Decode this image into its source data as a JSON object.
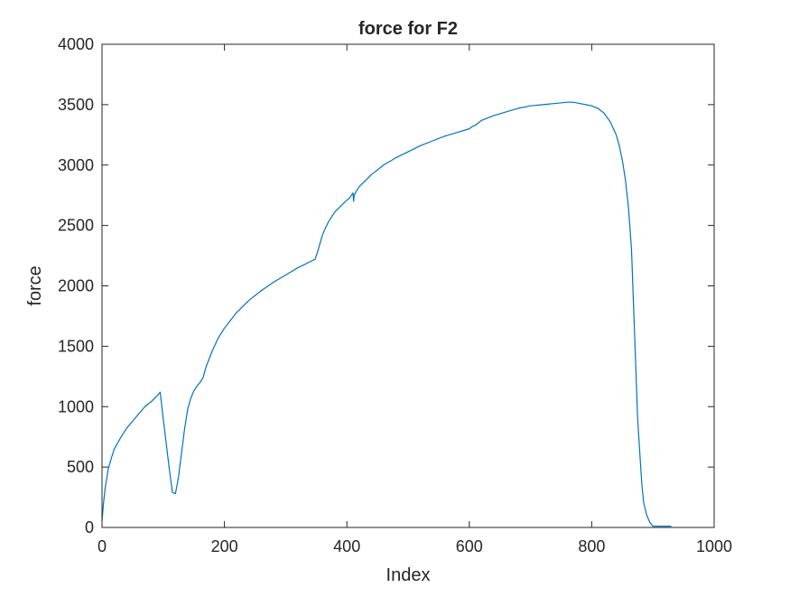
{
  "chart_data": {
    "type": "line",
    "title": "force for F2",
    "xlabel": "Index",
    "ylabel": "force",
    "xlim": [
      0,
      1000
    ],
    "ylim": [
      0,
      4000
    ],
    "xticks": [
      0,
      200,
      400,
      600,
      800,
      1000
    ],
    "yticks": [
      0,
      500,
      1000,
      1500,
      2000,
      2500,
      3000,
      3500,
      4000
    ],
    "grid": false,
    "box": true,
    "series": [
      {
        "color": "#0072BD",
        "x": [
          0,
          2,
          5,
          10,
          15,
          20,
          30,
          40,
          50,
          60,
          70,
          80,
          90,
          95,
          100,
          105,
          110,
          115,
          120,
          125,
          130,
          135,
          140,
          145,
          150,
          155,
          160,
          165,
          170,
          180,
          190,
          200,
          220,
          240,
          260,
          280,
          300,
          320,
          340,
          348,
          352,
          356,
          360,
          365,
          370,
          380,
          390,
          400,
          405,
          410,
          411,
          412,
          415,
          420,
          440,
          460,
          480,
          500,
          520,
          540,
          560,
          580,
          600,
          605,
          610,
          620,
          640,
          660,
          680,
          700,
          720,
          740,
          760,
          770,
          780,
          790,
          800,
          810,
          820,
          830,
          840,
          845,
          850,
          855,
          860,
          865,
          870,
          875,
          880,
          882,
          885,
          890,
          895,
          900,
          905,
          910,
          915,
          920,
          925,
          930
        ],
        "y": [
          50,
          180,
          320,
          480,
          570,
          650,
          740,
          820,
          880,
          940,
          1000,
          1040,
          1090,
          1120,
          900,
          690,
          480,
          290,
          280,
          420,
          620,
          820,
          980,
          1070,
          1130,
          1170,
          1200,
          1240,
          1330,
          1460,
          1570,
          1650,
          1780,
          1880,
          1960,
          2030,
          2090,
          2150,
          2200,
          2220,
          2280,
          2350,
          2420,
          2480,
          2530,
          2610,
          2660,
          2710,
          2730,
          2770,
          2700,
          2750,
          2780,
          2820,
          2920,
          3000,
          3060,
          3110,
          3160,
          3200,
          3240,
          3270,
          3300,
          3320,
          3330,
          3370,
          3410,
          3440,
          3470,
          3490,
          3500,
          3510,
          3520,
          3520,
          3510,
          3500,
          3490,
          3470,
          3430,
          3360,
          3250,
          3160,
          3040,
          2880,
          2650,
          2300,
          1600,
          900,
          500,
          350,
          200,
          100,
          40,
          10,
          10,
          10,
          10,
          10,
          10,
          10
        ]
      }
    ]
  }
}
